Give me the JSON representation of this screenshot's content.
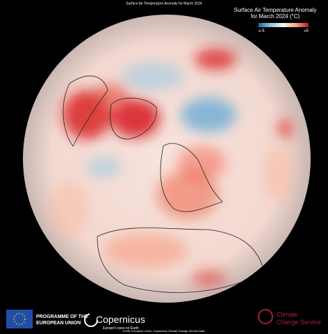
{
  "header": {
    "title": "Surface Air Temperature Anomaly for March 2024"
  },
  "legend": {
    "title_line1": "Surface Air Temperature Anomaly",
    "title_line2": "for March 2024 (°C)",
    "min_label": "≤-5",
    "max_label": "≥5"
  },
  "footer": {
    "eu_line1": "PROGRAMME OF THE",
    "eu_line2": "EUROPEAN UNION",
    "copernicus": "Copernicus",
    "copernicus_tagline": "Europe's eyes on Earth",
    "credit": "Credit: European Union, Copernicus Climate Change Service Data.",
    "c3s_line1": "Climate",
    "c3s_line2": "Change Service"
  }
}
